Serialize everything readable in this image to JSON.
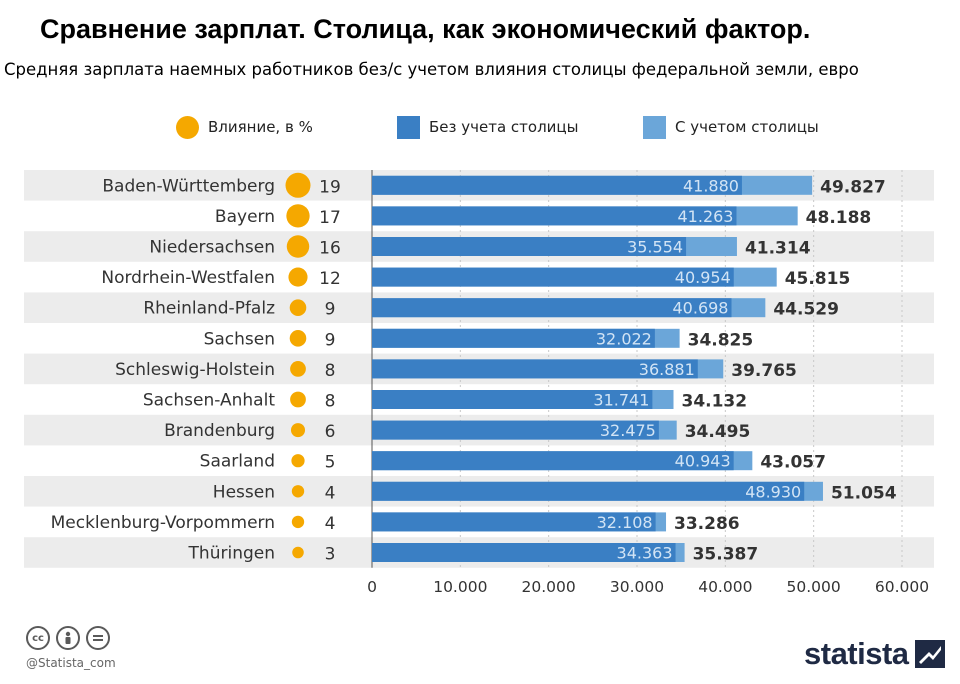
{
  "colors": {
    "dot": "#f5a800",
    "without_capital": "#3a7fc4",
    "with_capital": "#6ba6d9",
    "row_shade": "#ececec",
    "inner_label": "#d2e4f5"
  },
  "footer": {
    "handle": "@Statista_com",
    "brand": "statista",
    "icons": [
      "cc-icon",
      "by-icon",
      "nd-icon"
    ]
  },
  "chart_data": {
    "type": "bar",
    "orientation": "horizontal",
    "stacked_overlay": true,
    "title": "Сравнение зарплат. Столица, как экономический фактор.",
    "subtitle": "Средняя зарплата наемных работников без/с учетом влияния столицы федеральной земли, евро",
    "legend": [
      {
        "label": "Влияние, в %",
        "marker": "circle"
      },
      {
        "label": "Без учета столицы",
        "marker": "square"
      },
      {
        "label": "С учетом столицы",
        "marker": "square"
      }
    ],
    "legend_position": "top",
    "categories": [
      "Baden-Württemberg",
      "Bayern",
      "Niedersachsen",
      "Nordrhein-Westfalen",
      "Rheinland-Pfalz",
      "Sachsen",
      "Schleswig-Holstein",
      "Sachsen-Anhalt",
      "Brandenburg",
      "Saarland",
      "Hessen",
      "Mecklenburg-Vorpommern",
      "Thüringen"
    ],
    "influence_pct": [
      19,
      17,
      16,
      12,
      9,
      9,
      8,
      8,
      6,
      5,
      4,
      4,
      3
    ],
    "series": [
      {
        "name": "Без учета столицы",
        "values": [
          41880,
          41263,
          35554,
          40954,
          40698,
          32022,
          36881,
          31741,
          32475,
          40943,
          48930,
          32108,
          34363
        ],
        "labels": [
          "41.880",
          "41.263",
          "35.554",
          "40.954",
          "40.698",
          "32.022",
          "36.881",
          "31.741",
          "32.475",
          "40.943",
          "48.930",
          "32.108",
          "34.363"
        ]
      },
      {
        "name": "С учетом столицы",
        "values": [
          49827,
          48188,
          41314,
          45815,
          44529,
          34825,
          39765,
          34132,
          34495,
          43057,
          51054,
          33286,
          35387
        ],
        "labels": [
          "49.827",
          "48.188",
          "41.314",
          "45.815",
          "44.529",
          "34.825",
          "39.765",
          "34.132",
          "34.495",
          "43.057",
          "51.054",
          "33.286",
          "35.387"
        ]
      }
    ],
    "xlim": [
      0,
      60000
    ],
    "ticks": [
      0,
      10000,
      20000,
      30000,
      40000,
      50000,
      60000
    ],
    "tick_labels": [
      "0",
      "10.000",
      "20.000",
      "30.000",
      "40.000",
      "50.000",
      "60.000"
    ],
    "grid": true
  }
}
